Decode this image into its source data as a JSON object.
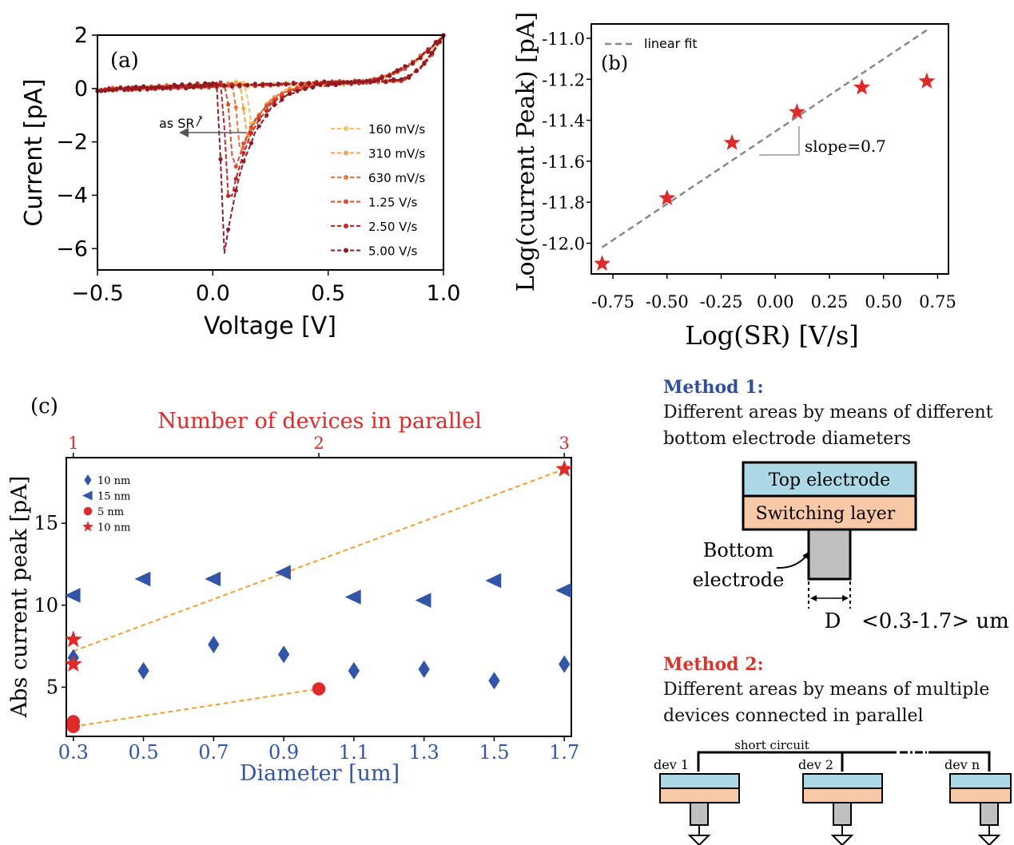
{
  "chart_data": [
    {
      "panel": "(a)",
      "type": "line",
      "xlabel": "Voltage [V]",
      "ylabel": "Current [pA]",
      "xlim": [
        -0.5,
        1.0
      ],
      "ylim": [
        -6.8,
        2.0
      ],
      "xticks": [
        "−0.5",
        "0.0",
        "0.5",
        "1.0"
      ],
      "yticks": [
        "2",
        "0",
        "−2",
        "−4",
        "−6"
      ],
      "annotation": "as SR",
      "legend_position": "right",
      "series": [
        {
          "name": "160 mV/s",
          "color": "#f7c063",
          "peak_v": 0.17,
          "peak_i": -1.5
        },
        {
          "name": "310 mV/s",
          "color": "#f2a54d",
          "peak_v": 0.15,
          "peak_i": -1.9
        },
        {
          "name": "630 mV/s",
          "color": "#e8783f",
          "peak_v": 0.12,
          "peak_i": -2.6
        },
        {
          "name": "1.25 V/s",
          "color": "#dc4b33",
          "peak_v": 0.09,
          "peak_i": -3.3
        },
        {
          "name": "2.50 V/s",
          "color": "#c5262a",
          "peak_v": 0.07,
          "peak_i": -4.6
        },
        {
          "name": "5.00 V/s",
          "color": "#8f1a22",
          "peak_v": 0.05,
          "peak_i": -6.2
        }
      ]
    },
    {
      "panel": "(b)",
      "type": "scatter",
      "xlabel": "Log(SR) [V/s]",
      "ylabel": "Log(current Peak) [pA]",
      "xlim": [
        -0.85,
        0.8
      ],
      "ylim": [
        -12.15,
        -10.93
      ],
      "xticks": [
        "-0.75",
        "-0.50",
        "-0.25",
        "0.00",
        "0.25",
        "0.50",
        "0.75"
      ],
      "yticks": [
        "-11.0",
        "-11.2",
        "-11.4",
        "-11.6",
        "-11.8",
        "-12.0"
      ],
      "points": [
        {
          "x": -0.8,
          "y": -12.1
        },
        {
          "x": -0.5,
          "y": -11.78
        },
        {
          "x": -0.2,
          "y": -11.51
        },
        {
          "x": 0.1,
          "y": -11.36
        },
        {
          "x": 0.4,
          "y": -11.24
        },
        {
          "x": 0.7,
          "y": -11.21
        }
      ],
      "fit": {
        "name": "linear fit",
        "x": [
          -0.8,
          0.7
        ],
        "y": [
          -12.02,
          -10.96
        ]
      },
      "slope_label": "slope=0.7",
      "legend_position": "top-left"
    },
    {
      "panel": "(c)",
      "type": "scatter",
      "xlabel": "Diameter [um]",
      "ylabel": "Abs current peak [pA]",
      "top_xlabel": "Number of devices in parallel",
      "xlim": [
        0.28,
        1.72
      ],
      "ylim": [
        2.0,
        19.0
      ],
      "xticks": [
        "0.3",
        "0.5",
        "0.7",
        "0.9",
        "1.1",
        "1.3",
        "1.5",
        "1.7"
      ],
      "top_xticks": [
        "1",
        "2",
        "3"
      ],
      "yticks": [
        "5",
        "10",
        "15"
      ],
      "legend_position": "top-left",
      "series": [
        {
          "name": "10 nm",
          "marker": "diamond",
          "color": "#3355a8",
          "x": [
            0.3,
            0.5,
            0.7,
            0.9,
            1.1,
            1.3,
            1.5,
            1.7
          ],
          "y": [
            6.8,
            6.0,
            7.6,
            7.0,
            6.0,
            6.1,
            5.4,
            6.4
          ]
        },
        {
          "name": "15 nm",
          "marker": "triangle-left",
          "color": "#3355a8",
          "x": [
            0.3,
            0.5,
            0.7,
            0.9,
            1.1,
            1.3,
            1.5,
            1.7
          ],
          "y": [
            10.6,
            11.6,
            11.6,
            12.0,
            10.5,
            10.3,
            11.5,
            10.9
          ]
        },
        {
          "name": "5 nm",
          "marker": "circle",
          "color": "#e02a2a",
          "x": [
            0.3,
            0.3,
            1.0
          ],
          "y": [
            2.9,
            2.6,
            4.9
          ]
        },
        {
          "name": "10 nm",
          "marker": "star",
          "color": "#e02a2a",
          "x": [
            0.3,
            0.3,
            1.7
          ],
          "y": [
            7.9,
            6.4,
            18.3
          ]
        }
      ],
      "fits": [
        {
          "x": [
            0.3,
            1.7
          ],
          "y": [
            7.2,
            18.3
          ]
        },
        {
          "x": [
            0.3,
            1.0
          ],
          "y": [
            2.6,
            4.9
          ]
        }
      ]
    }
  ],
  "methods": {
    "method1_title": "Method 1:",
    "method1_line1": "Different areas by means of different",
    "method1_line2": "bottom electrode diameters",
    "top_electrode": "Top electrode",
    "switching_layer": "Switching layer",
    "bottom_label1": "Bottom",
    "bottom_label2": "electrode",
    "d_label": "D",
    "range_label": "<0.3-1.7> um",
    "method2_title": "Method 2:",
    "method2_line1": "Different areas by means of multiple",
    "method2_line2": "devices connected in parallel",
    "short_circuit": "short circuit",
    "devices": [
      "dev 1",
      "dev 2",
      "dev n"
    ]
  },
  "colors": {
    "method1": "#2f4f9e",
    "method2": "#d9332a",
    "top_electrode": "#add8e6",
    "switching_layer": "#f9c8a6",
    "bottom_electrode": "#c0c0c0",
    "fit_orange": "#f0a030",
    "star_red": "#e02a2a",
    "blue_marker": "#3355a8"
  }
}
